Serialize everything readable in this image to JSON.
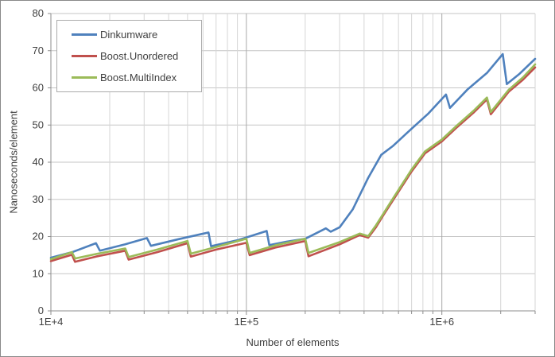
{
  "chart_data": {
    "type": "line",
    "title": "",
    "xlabel": "Number of elements",
    "ylabel": "Nanoseconds/element",
    "x_scale": "log",
    "xlim": [
      10000,
      3000000
    ],
    "ylim": [
      0,
      80
    ],
    "grid": true,
    "legend_position": "top-left-inside",
    "x_tick_labels": [
      {
        "value": 10000,
        "label": "1E+4"
      },
      {
        "value": 100000,
        "label": "1E+5"
      },
      {
        "value": 1000000,
        "label": "1E+6"
      }
    ],
    "y_ticks": [
      0,
      10,
      20,
      30,
      40,
      50,
      60,
      70,
      80
    ],
    "minor_x_gridlines": [
      20000,
      30000,
      40000,
      50000,
      60000,
      70000,
      80000,
      90000,
      200000,
      300000,
      400000,
      500000,
      600000,
      700000,
      800000,
      900000,
      2000000,
      3000000
    ],
    "major_x_gridlines": [
      100000,
      1000000
    ],
    "series": [
      {
        "name": "Dinkumware",
        "color": "#4F81BD",
        "points": [
          [
            10000,
            14.3
          ],
          [
            13000,
            15.9
          ],
          [
            17000,
            18.2
          ],
          [
            17800,
            16.2
          ],
          [
            24000,
            17.9
          ],
          [
            31000,
            19.6
          ],
          [
            32500,
            17.5
          ],
          [
            45000,
            19.3
          ],
          [
            64000,
            21.1
          ],
          [
            66000,
            17.4
          ],
          [
            90000,
            19.0
          ],
          [
            127000,
            21.5
          ],
          [
            131000,
            17.7
          ],
          [
            160000,
            18.6
          ],
          [
            200000,
            19.4
          ],
          [
            255000,
            22.2
          ],
          [
            270000,
            21.3
          ],
          [
            285000,
            21.9
          ],
          [
            300000,
            22.5
          ],
          [
            350000,
            27.3
          ],
          [
            420000,
            35.8
          ],
          [
            490000,
            42.0
          ],
          [
            560000,
            44.3
          ],
          [
            700000,
            49.0
          ],
          [
            850000,
            53.0
          ],
          [
            1050000,
            58.2
          ],
          [
            1100000,
            54.6
          ],
          [
            1350000,
            59.5
          ],
          [
            1700000,
            64.0
          ],
          [
            2050000,
            69.1
          ],
          [
            2150000,
            61.0
          ],
          [
            2500000,
            63.8
          ],
          [
            3000000,
            67.8
          ]
        ]
      },
      {
        "name": "Boost.Unordered",
        "color": "#C0504D",
        "points": [
          [
            10000,
            13.4
          ],
          [
            12800,
            15.1
          ],
          [
            13300,
            13.2
          ],
          [
            17000,
            14.6
          ],
          [
            24000,
            16.2
          ],
          [
            25000,
            13.8
          ],
          [
            35000,
            15.8
          ],
          [
            50000,
            18.2
          ],
          [
            52000,
            14.6
          ],
          [
            70000,
            16.5
          ],
          [
            100000,
            18.3
          ],
          [
            104000,
            15.0
          ],
          [
            140000,
            17.0
          ],
          [
            200000,
            18.8
          ],
          [
            208000,
            14.7
          ],
          [
            300000,
            17.9
          ],
          [
            380000,
            20.4
          ],
          [
            420000,
            19.7
          ],
          [
            460000,
            22.5
          ],
          [
            500000,
            25.6
          ],
          [
            560000,
            29.6
          ],
          [
            700000,
            37.5
          ],
          [
            820000,
            42.4
          ],
          [
            1000000,
            45.6
          ],
          [
            1200000,
            49.5
          ],
          [
            1450000,
            53.3
          ],
          [
            1700000,
            56.9
          ],
          [
            1780000,
            52.9
          ],
          [
            2200000,
            59.0
          ],
          [
            2600000,
            62.2
          ],
          [
            3000000,
            65.5
          ]
        ]
      },
      {
        "name": "Boost.MultiIndex",
        "color": "#9BBB59",
        "points": [
          [
            10000,
            13.9
          ],
          [
            12800,
            15.8
          ],
          [
            13300,
            14.1
          ],
          [
            17000,
            15.3
          ],
          [
            24000,
            16.8
          ],
          [
            25000,
            14.5
          ],
          [
            35000,
            16.5
          ],
          [
            50000,
            18.8
          ],
          [
            52000,
            15.4
          ],
          [
            70000,
            17.2
          ],
          [
            100000,
            19.4
          ],
          [
            104000,
            15.6
          ],
          [
            140000,
            17.6
          ],
          [
            200000,
            19.4
          ],
          [
            208000,
            15.6
          ],
          [
            300000,
            18.5
          ],
          [
            380000,
            20.8
          ],
          [
            420000,
            20.1
          ],
          [
            460000,
            23.0
          ],
          [
            500000,
            26.0
          ],
          [
            560000,
            30.1
          ],
          [
            700000,
            38.0
          ],
          [
            820000,
            42.9
          ],
          [
            1000000,
            46.1
          ],
          [
            1200000,
            50.0
          ],
          [
            1450000,
            53.8
          ],
          [
            1700000,
            57.4
          ],
          [
            1780000,
            53.5
          ],
          [
            2200000,
            59.5
          ],
          [
            2600000,
            62.8
          ],
          [
            3000000,
            66.3
          ]
        ]
      }
    ]
  },
  "style_colors": {
    "horizontal_grid": "#c6c6c6",
    "vertical_minor_grid": "#d6d6d6",
    "vertical_major_grid": "#a9a9a9",
    "axis_line": "#8e8e8e",
    "tick_text": "#3f3f3f"
  }
}
